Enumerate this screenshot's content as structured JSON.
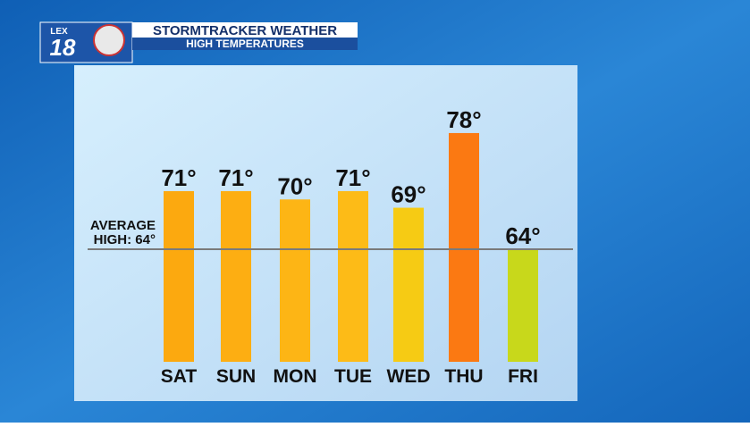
{
  "chart_data": {
    "type": "bar",
    "title": "STORMTRACKER WEATHER",
    "subtitle": "HIGH TEMPERATURES",
    "logo": [
      "LEX",
      "18"
    ],
    "categories": [
      "SAT",
      "SUN",
      "MON",
      "TUE",
      "WED",
      "THU",
      "FRI"
    ],
    "values": [
      71,
      71,
      70,
      71,
      69,
      78,
      64
    ],
    "value_labels": [
      "71°",
      "71°",
      "70°",
      "71°",
      "69°",
      "78°",
      "64°"
    ],
    "colors": [
      "#fca90f",
      "#fdae12",
      "#fdb515",
      "#fdbb17",
      "#f6cb14",
      "#fb7912",
      "#c8d81b"
    ],
    "reference_line": {
      "value": 64,
      "label": [
        "AVERAGE",
        "HIGH: 64°"
      ],
      "color": "#7a7a7a"
    }
  }
}
